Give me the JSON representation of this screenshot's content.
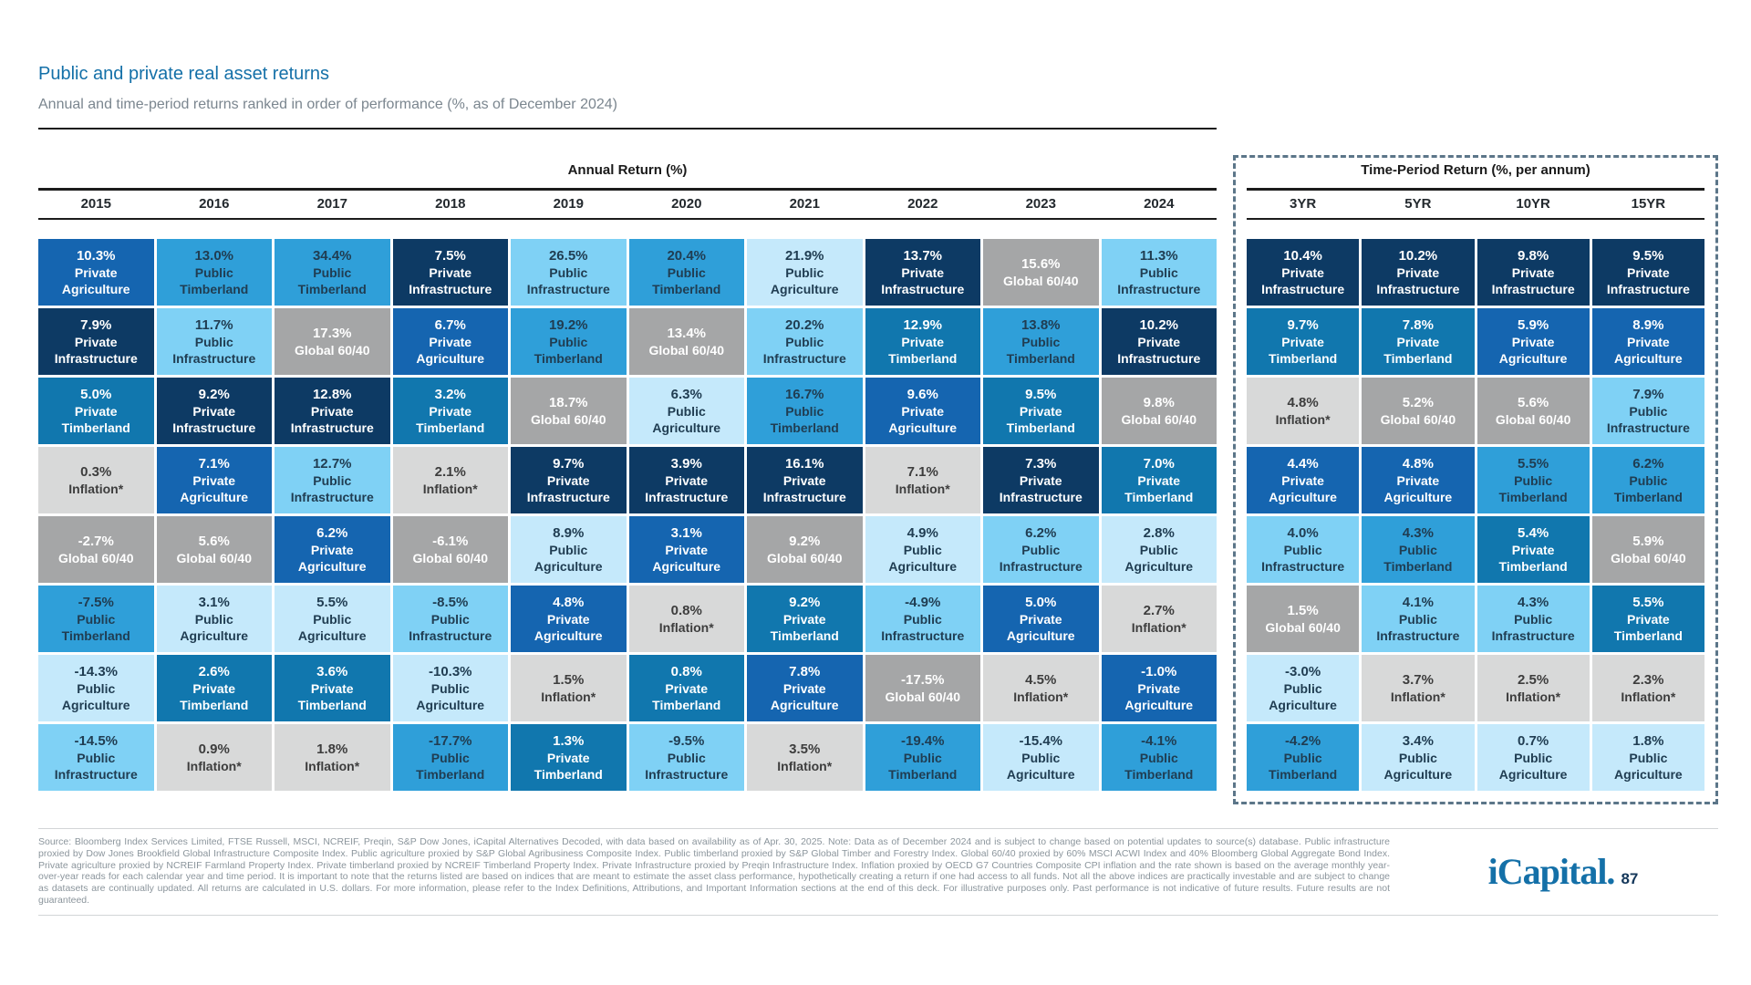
{
  "page": {
    "title": "Public and private real asset returns",
    "subtitle": "Annual and time-period returns ranked in order of performance (%, as of December 2024)",
    "logo_text": "iCapital.",
    "page_number": "87",
    "footnote": "Source: Bloomberg Index Services Limited, FTSE Russell, MSCI, NCREIF, Preqin, S&P Dow Jones, iCapital Alternatives Decoded, with data based on availability as of Apr. 30, 2025. Note: Data as of December 2024 and is subject to change based on potential updates to source(s) database. Public infrastructure proxied by Dow Jones Brookfield Global Infrastructure Composite Index. Public agriculture proxied by S&P Global Agribusiness Composite Index. Public timberland proxied by S&P Global Timber and Forestry Index. Global 60/40 proxied by 60% MSCI ACWI Index and 40% Bloomberg Global Aggregate Bond Index. Private agriculture proxied by NCREIF Farmland Property Index. Private timberland proxied by NCREIF Timberland Property Index. Private Infrastructure proxied by Preqin Infrastructure Index. Inflation proxied by OECD G7 Countries Composite CPI inflation and the rate shown is based on the average monthly year-over-year reads for each calendar year and time period. It is important to note that the returns listed are based on indices that are meant to estimate the asset class performance, hypothetically creating a return if one had access to all funds. Not all the above indices are practically investable and are subject to change as datasets are continually updated. All returns are calculated in U.S. dollars. For more information, please refer to the Index Definitions, Attributions, and Important Information sections at the end of this deck. For illustrative purposes only. Past performance is not indicative of future results. Future results are not guaranteed."
  },
  "colors": {
    "title_blue": "#1470a8",
    "logo_blue": "#1470a8",
    "page_number_navy": "#14375a",
    "dashed_border": "#5c7689"
  },
  "chart_data": {
    "type": "table",
    "title": "Public and private real asset returns",
    "subtitle": "Annual and time-period returns ranked in order of performance (%, as of December 2024)",
    "value_unit": "%",
    "assets": {
      "private_agriculture": {
        "label": "Private Agriculture",
        "bg": "#1565b0",
        "fg": "#ffffff"
      },
      "private_infrastructure": {
        "label": "Private Infrastructure",
        "bg": "#0d3a64",
        "fg": "#ffffff"
      },
      "private_timberland": {
        "label": "Private Timberland",
        "bg": "#1177ae",
        "fg": "#ffffff"
      },
      "public_timberland": {
        "label": "Public Timberland",
        "bg": "#2f9fd9",
        "fg": "#203d52"
      },
      "public_infrastructure": {
        "label": "Public Infrastructure",
        "bg": "#7fd1f5",
        "fg": "#203d52"
      },
      "public_agriculture": {
        "label": "Public Agriculture",
        "bg": "#c5e9fb",
        "fg": "#203d52"
      },
      "global_60_40": {
        "label": "Global 60/40",
        "bg": "#a5a6a7",
        "fg": "#ffffff"
      },
      "inflation": {
        "label": "Inflation*",
        "bg": "#d8d9d9",
        "fg": "#3d3d3d"
      }
    },
    "groups": [
      {
        "id": "annual",
        "header": "Annual Return (%)",
        "columns": [
          {
            "label": "2015",
            "cells": [
              {
                "value": 10.3,
                "asset": "private_agriculture"
              },
              {
                "value": 7.9,
                "asset": "private_infrastructure"
              },
              {
                "value": 5.0,
                "asset": "private_timberland"
              },
              {
                "value": 0.3,
                "asset": "inflation"
              },
              {
                "value": -2.7,
                "asset": "global_60_40"
              },
              {
                "value": -7.5,
                "asset": "public_timberland"
              },
              {
                "value": -14.3,
                "asset": "public_agriculture"
              },
              {
                "value": -14.5,
                "asset": "public_infrastructure"
              }
            ]
          },
          {
            "label": "2016",
            "cells": [
              {
                "value": 13.0,
                "asset": "public_timberland"
              },
              {
                "value": 11.7,
                "asset": "public_infrastructure"
              },
              {
                "value": 9.2,
                "asset": "private_infrastructure"
              },
              {
                "value": 7.1,
                "asset": "private_agriculture"
              },
              {
                "value": 5.6,
                "asset": "global_60_40"
              },
              {
                "value": 3.1,
                "asset": "public_agriculture"
              },
              {
                "value": 2.6,
                "asset": "private_timberland"
              },
              {
                "value": 0.9,
                "asset": "inflation"
              }
            ]
          },
          {
            "label": "2017",
            "cells": [
              {
                "value": 34.4,
                "asset": "public_timberland"
              },
              {
                "value": 17.3,
                "asset": "global_60_40"
              },
              {
                "value": 12.8,
                "asset": "private_infrastructure"
              },
              {
                "value": 12.7,
                "asset": "public_infrastructure"
              },
              {
                "value": 6.2,
                "asset": "private_agriculture"
              },
              {
                "value": 5.5,
                "asset": "public_agriculture"
              },
              {
                "value": 3.6,
                "asset": "private_timberland"
              },
              {
                "value": 1.8,
                "asset": "inflation"
              }
            ]
          },
          {
            "label": "2018",
            "cells": [
              {
                "value": 7.5,
                "asset": "private_infrastructure"
              },
              {
                "value": 6.7,
                "asset": "private_agriculture"
              },
              {
                "value": 3.2,
                "asset": "private_timberland"
              },
              {
                "value": 2.1,
                "asset": "inflation"
              },
              {
                "value": -6.1,
                "asset": "global_60_40"
              },
              {
                "value": -8.5,
                "asset": "public_infrastructure"
              },
              {
                "value": -10.3,
                "asset": "public_agriculture"
              },
              {
                "value": -17.7,
                "asset": "public_timberland"
              }
            ]
          },
          {
            "label": "2019",
            "cells": [
              {
                "value": 26.5,
                "asset": "public_infrastructure"
              },
              {
                "value": 19.2,
                "asset": "public_timberland"
              },
              {
                "value": 18.7,
                "asset": "global_60_40"
              },
              {
                "value": 9.7,
                "asset": "private_infrastructure"
              },
              {
                "value": 8.9,
                "asset": "public_agriculture"
              },
              {
                "value": 4.8,
                "asset": "private_agriculture"
              },
              {
                "value": 1.5,
                "asset": "inflation"
              },
              {
                "value": 1.3,
                "asset": "private_timberland"
              }
            ]
          },
          {
            "label": "2020",
            "cells": [
              {
                "value": 20.4,
                "asset": "public_timberland"
              },
              {
                "value": 13.4,
                "asset": "global_60_40"
              },
              {
                "value": 6.3,
                "asset": "public_agriculture"
              },
              {
                "value": 3.9,
                "asset": "private_infrastructure"
              },
              {
                "value": 3.1,
                "asset": "private_agriculture"
              },
              {
                "value": 0.8,
                "asset": "inflation"
              },
              {
                "value": 0.8,
                "asset": "private_timberland"
              },
              {
                "value": -9.5,
                "asset": "public_infrastructure"
              }
            ]
          },
          {
            "label": "2021",
            "cells": [
              {
                "value": 21.9,
                "asset": "public_agriculture"
              },
              {
                "value": 20.2,
                "asset": "public_infrastructure"
              },
              {
                "value": 16.7,
                "asset": "public_timberland"
              },
              {
                "value": 16.1,
                "asset": "private_infrastructure"
              },
              {
                "value": 9.2,
                "asset": "global_60_40"
              },
              {
                "value": 9.2,
                "asset": "private_timberland"
              },
              {
                "value": 7.8,
                "asset": "private_agriculture"
              },
              {
                "value": 3.5,
                "asset": "inflation"
              }
            ]
          },
          {
            "label": "2022",
            "cells": [
              {
                "value": 13.7,
                "asset": "private_infrastructure"
              },
              {
                "value": 12.9,
                "asset": "private_timberland"
              },
              {
                "value": 9.6,
                "asset": "private_agriculture"
              },
              {
                "value": 7.1,
                "asset": "inflation"
              },
              {
                "value": 4.9,
                "asset": "public_agriculture"
              },
              {
                "value": -4.9,
                "asset": "public_infrastructure"
              },
              {
                "value": -17.5,
                "asset": "global_60_40"
              },
              {
                "value": -19.4,
                "asset": "public_timberland"
              }
            ]
          },
          {
            "label": "2023",
            "cells": [
              {
                "value": 15.6,
                "asset": "global_60_40"
              },
              {
                "value": 13.8,
                "asset": "public_timberland"
              },
              {
                "value": 9.5,
                "asset": "private_timberland"
              },
              {
                "value": 7.3,
                "asset": "private_infrastructure"
              },
              {
                "value": 6.2,
                "asset": "public_infrastructure"
              },
              {
                "value": 5.0,
                "asset": "private_agriculture"
              },
              {
                "value": 4.5,
                "asset": "inflation"
              },
              {
                "value": -15.4,
                "asset": "public_agriculture"
              }
            ]
          },
          {
            "label": "2024",
            "cells": [
              {
                "value": 11.3,
                "asset": "public_infrastructure"
              },
              {
                "value": 10.2,
                "asset": "private_infrastructure"
              },
              {
                "value": 9.8,
                "asset": "global_60_40"
              },
              {
                "value": 7.0,
                "asset": "private_timberland"
              },
              {
                "value": 2.8,
                "asset": "public_agriculture"
              },
              {
                "value": 2.7,
                "asset": "inflation"
              },
              {
                "value": -1.0,
                "asset": "private_agriculture"
              },
              {
                "value": -4.1,
                "asset": "public_timberland"
              }
            ]
          }
        ]
      },
      {
        "id": "period",
        "header": "Time-Period Return (%, per annum)",
        "columns": [
          {
            "label": "3YR",
            "cells": [
              {
                "value": 10.4,
                "asset": "private_infrastructure"
              },
              {
                "value": 9.7,
                "asset": "private_timberland"
              },
              {
                "value": 4.8,
                "asset": "inflation"
              },
              {
                "value": 4.4,
                "asset": "private_agriculture"
              },
              {
                "value": 4.0,
                "asset": "public_infrastructure"
              },
              {
                "value": 1.5,
                "asset": "global_60_40"
              },
              {
                "value": -3.0,
                "asset": "public_agriculture"
              },
              {
                "value": -4.2,
                "asset": "public_timberland"
              }
            ]
          },
          {
            "label": "5YR",
            "cells": [
              {
                "value": 10.2,
                "asset": "private_infrastructure"
              },
              {
                "value": 7.8,
                "asset": "private_timberland"
              },
              {
                "value": 5.2,
                "asset": "global_60_40"
              },
              {
                "value": 4.8,
                "asset": "private_agriculture"
              },
              {
                "value": 4.3,
                "asset": "public_timberland"
              },
              {
                "value": 4.1,
                "asset": "public_infrastructure"
              },
              {
                "value": 3.7,
                "asset": "inflation"
              },
              {
                "value": 3.4,
                "asset": "public_agriculture"
              }
            ]
          },
          {
            "label": "10YR",
            "cells": [
              {
                "value": 9.8,
                "asset": "private_infrastructure"
              },
              {
                "value": 5.9,
                "asset": "private_agriculture"
              },
              {
                "value": 5.6,
                "asset": "global_60_40"
              },
              {
                "value": 5.5,
                "asset": "public_timberland"
              },
              {
                "value": 5.4,
                "asset": "private_timberland"
              },
              {
                "value": 4.3,
                "asset": "public_infrastructure"
              },
              {
                "value": 2.5,
                "asset": "inflation"
              },
              {
                "value": 0.7,
                "asset": "public_agriculture"
              }
            ]
          },
          {
            "label": "15YR",
            "cells": [
              {
                "value": 9.5,
                "asset": "private_infrastructure"
              },
              {
                "value": 8.9,
                "asset": "private_agriculture"
              },
              {
                "value": 7.9,
                "asset": "public_infrastructure"
              },
              {
                "value": 6.2,
                "asset": "public_timberland"
              },
              {
                "value": 5.9,
                "asset": "global_60_40"
              },
              {
                "value": 5.5,
                "asset": "private_timberland"
              },
              {
                "value": 2.3,
                "asset": "inflation"
              },
              {
                "value": 1.8,
                "asset": "public_agriculture"
              }
            ]
          }
        ]
      }
    ]
  }
}
